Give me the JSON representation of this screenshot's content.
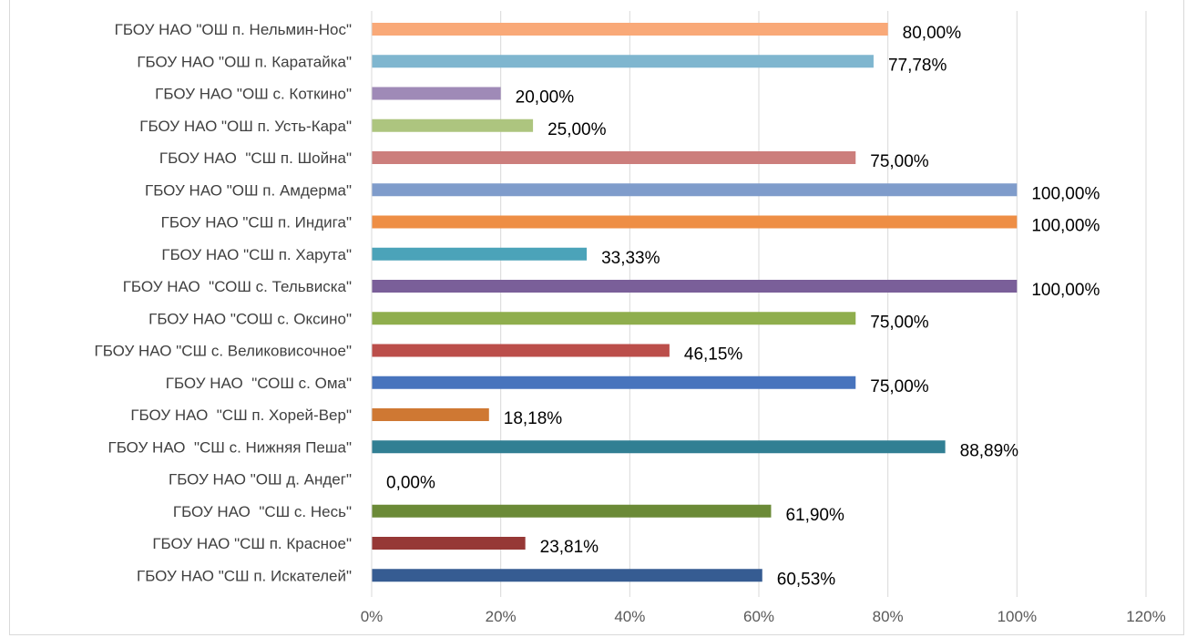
{
  "chart_data": {
    "type": "bar",
    "orientation": "horizontal",
    "categories": [
      "ГБОУ НАО \"ОШ п. Нельмин-Нос\"",
      "ГБОУ НАО \"ОШ п. Каратайка\"",
      "ГБОУ НАО \"ОШ с. Коткино\"",
      "ГБОУ НАО \"ОШ п. Усть-Кара\"",
      "ГБОУ НАО  \"СШ п. Шойна\"",
      "ГБОУ НАО \"ОШ п. Амдерма\"",
      "ГБОУ НАО \"СШ п. Индига\"",
      "ГБОУ НАО \"СШ п. Харута\"",
      "ГБОУ НАО  \"СОШ с. Тельвиска\"",
      "ГБОУ НАО \"СОШ с. Оксино\"",
      "ГБОУ НАО \"СШ с. Великовисочное\"",
      "ГБОУ НАО  \"СОШ с. Ома\"",
      "ГБОУ НАО  \"СШ п. Хорей-Вер\"",
      "ГБОУ НАО  \"СШ с. Нижняя Пеша\"",
      "ГБОУ НАО \"ОШ д. Андег\"",
      "ГБОУ НАО  \"СШ с. Несь\"",
      "ГБОУ НАО \"СШ п. Красное\"",
      "ГБОУ НАО \"СШ п. Искателей\""
    ],
    "values": [
      80.0,
      77.78,
      20.0,
      25.0,
      75.0,
      100.0,
      100.0,
      33.33,
      100.0,
      75.0,
      46.15,
      75.0,
      18.18,
      88.89,
      0.0,
      61.9,
      23.81,
      60.53
    ],
    "data_labels": [
      "80,00%",
      "77,78%",
      "20,00%",
      "25,00%",
      "75,00%",
      "100,00%",
      "100,00%",
      "33,33%",
      "100,00%",
      "75,00%",
      "46,15%",
      "75,00%",
      "18,18%",
      "88,89%",
      "0,00%",
      "61,90%",
      "23,81%",
      "60,53%"
    ],
    "colors": [
      "#f9a978",
      "#7fb6cf",
      "#9f8ab7",
      "#adc57f",
      "#cc7e7c",
      "#7f9ccb",
      "#ee8e45",
      "#4ba3b9",
      "#7a5f99",
      "#8fae4d",
      "#bb4e4a",
      "#4874bd",
      "#cf7833",
      "#317f93",
      "#5a4177",
      "#6b8a37",
      "#963836",
      "#365c92"
    ],
    "xlim": [
      0,
      120
    ],
    "x_ticks": [
      "0%",
      "20%",
      "40%",
      "60%",
      "80%",
      "100%",
      "120%"
    ],
    "grid": "vertical",
    "title": "",
    "xlabel": "",
    "ylabel": ""
  }
}
